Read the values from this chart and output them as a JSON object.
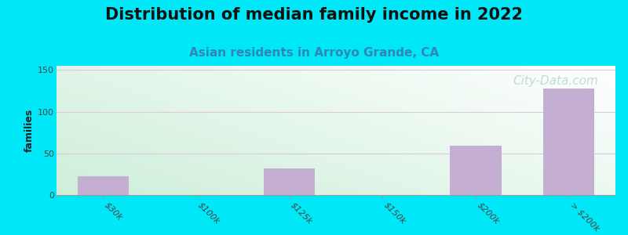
{
  "title": "Distribution of median family income in 2022",
  "subtitle": "Asian residents in Arroyo Grande, CA",
  "watermark": "City-Data.com",
  "ylabel": "families",
  "categories": [
    "$30k",
    "$100k",
    "$125k",
    "$150k",
    "$200k",
    "> $200k"
  ],
  "values": [
    23,
    0,
    32,
    0,
    59,
    128
  ],
  "bar_color": "#c4aed2",
  "ylim": [
    0,
    155
  ],
  "yticks": [
    0,
    50,
    100,
    150
  ],
  "background_outer": "#00e8f8",
  "grad_color_topleft": "#b8e8c8",
  "grad_color_right": "#f0f4f0",
  "title_fontsize": 15,
  "subtitle_fontsize": 11,
  "subtitle_color": "#2e86b8",
  "ylabel_fontsize": 9,
  "tick_label_fontsize": 8,
  "grid_color": "#ddc8e0",
  "watermark_color": "#90c0c8",
  "watermark_alpha": 0.55,
  "watermark_fontsize": 11
}
